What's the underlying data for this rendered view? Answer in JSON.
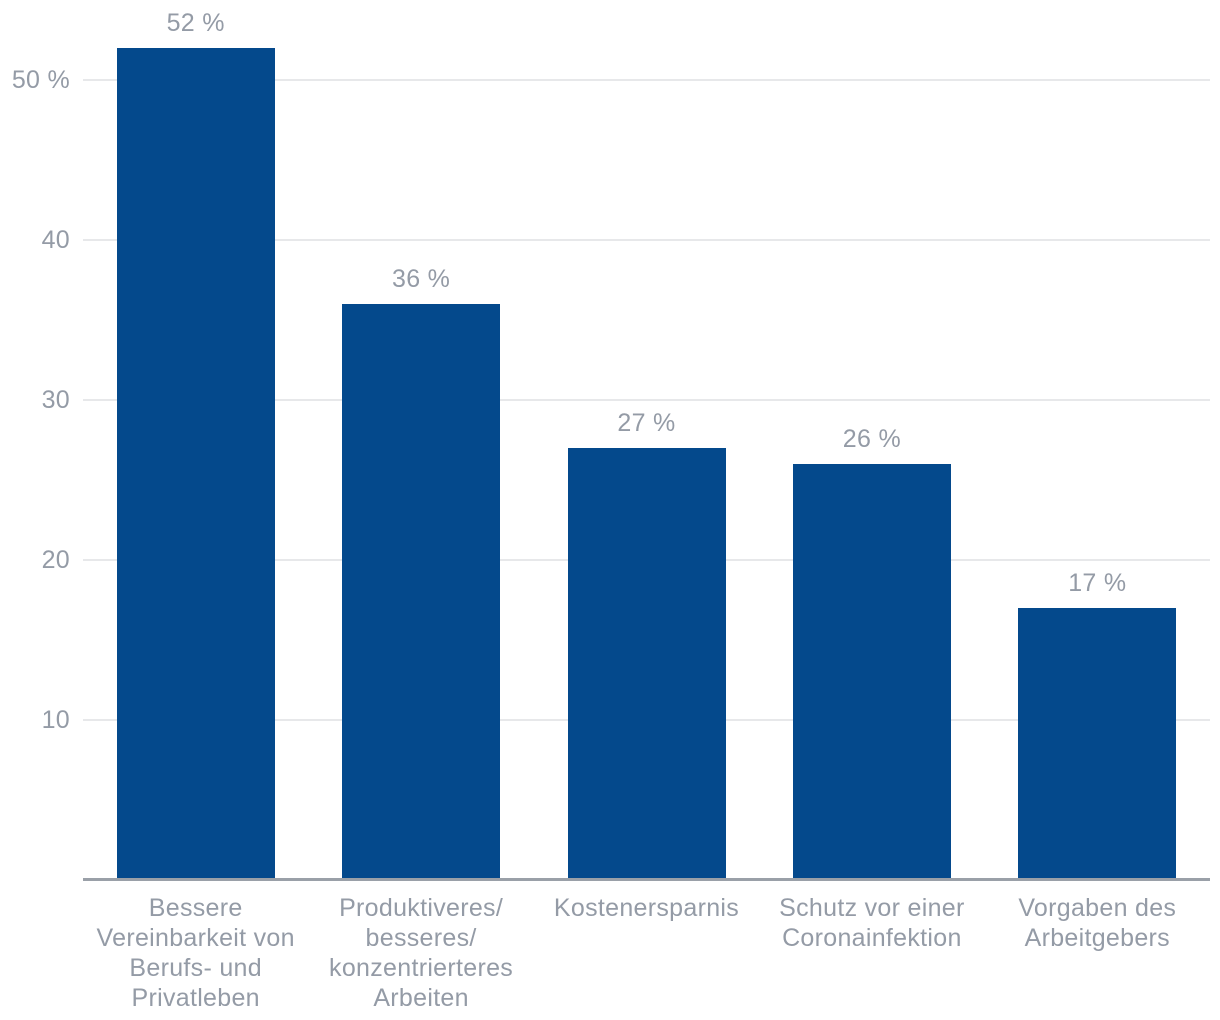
{
  "chart_data": {
    "type": "bar",
    "categories": [
      "Bessere\nVereinbarkeit von\nBerufs- und\nPrivatleben",
      "Produktiveres/\nbesseres/\nkonzentrierteres\nArbeiten",
      "Kostenersparnis",
      "Schutz vor einer\nCoronainfektion",
      "Vorgaben des\nArbeitgebers"
    ],
    "values": [
      52,
      36,
      27,
      26,
      17
    ],
    "value_labels": [
      "52 %",
      "36 %",
      "27 %",
      "26 %",
      "17 %"
    ],
    "y_ticks": [
      {
        "value": 10,
        "label": "10"
      },
      {
        "value": 20,
        "label": "20"
      },
      {
        "value": 30,
        "label": "30"
      },
      {
        "value": 40,
        "label": "40"
      },
      {
        "value": 50,
        "label": "50 %"
      }
    ],
    "ylim": [
      0,
      55
    ],
    "grid": true,
    "legend": false,
    "colors": {
      "bar": "#04498c",
      "label_text": "#949ba6",
      "gridline": "#e7e8ea",
      "axis_line": "#9aa0a8",
      "background": "#ffffff"
    }
  }
}
